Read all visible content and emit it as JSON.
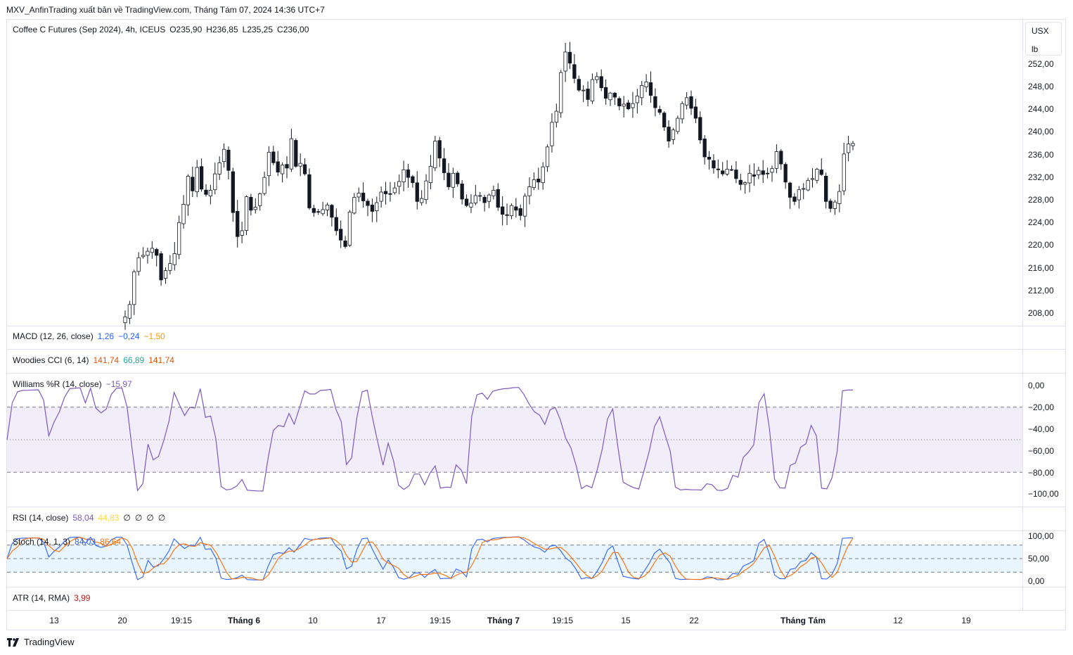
{
  "header": {
    "publish_line": "MXV_AnfinTrading xuất bản về TradingView.com, Tháng Tám 07, 2024 14:36 UTC+7"
  },
  "main_legend": {
    "symbol": "Coffee C Futures (Sep 2024), 4h, ICEUS",
    "open": "O235,90",
    "high": "H236,85",
    "low": "L235,25",
    "close": "C236,00"
  },
  "units": {
    "currency": "USX",
    "unit": "lb"
  },
  "indicators": {
    "macd": {
      "label": "MACD (12, 26, close)",
      "v1": "1,26",
      "v2": "−0,24",
      "v3": "−1,50",
      "c1": "#2962ff",
      "c2": "#2962ff",
      "c3": "#ff9800"
    },
    "cci": {
      "label": "Woodies CCI (6, 14)",
      "v1": "141,74",
      "v2": "66,89",
      "v3": "141,74",
      "c1": "#e65100",
      "c2": "#26a69a",
      "c3": "#e65100"
    },
    "williams": {
      "label": "Williams %R (14, close)",
      "v1": "−15,97",
      "c1": "#7e57c2",
      "axis": [
        "0,00",
        "−20,00",
        "−40,00",
        "−60,00",
        "−80,00",
        "−100,00"
      ]
    },
    "rsi": {
      "label": "RSI (14, close)",
      "v1": "58,04",
      "v2": "44,83",
      "v3": "∅",
      "v4": "∅",
      "v5": "∅",
      "v6": "∅",
      "c1": "#7e57c2",
      "c2": "#fdd835"
    },
    "stoch": {
      "label": "Stoch (14, 1, 3)",
      "v1": "84,03",
      "v2": "86,64",
      "c1": "#2962ff",
      "c2": "#ff6d00",
      "axis": [
        "100,00",
        "50,00",
        "0,00"
      ]
    },
    "atr": {
      "label": "ATR (14, RMA)",
      "v1": "3,99",
      "c1": "#b71c1c"
    }
  },
  "price_axis": [
    "252,00",
    "248,00",
    "244,00",
    "240,00",
    "236,00",
    "232,00",
    "228,00",
    "224,00",
    "220,00",
    "216,00",
    "212,00",
    "208,00"
  ],
  "date_axis": [
    "13",
    "20",
    "19:15",
    "Tháng 6",
    "10",
    "17",
    "19:15",
    "Tháng 7",
    "19:15",
    "15",
    "22",
    "Tháng Tám",
    "12",
    "19"
  ],
  "footer": {
    "brand": "TradingView"
  },
  "chart_data": {
    "type": "candlestick",
    "interval": "4h",
    "x_range": [
      "Tháng 5",
      "19 Tháng Tám"
    ],
    "y_range": [
      205,
      257
    ],
    "close_series": [
      206.4,
      208.5,
      214.1,
      216.5,
      216.9,
      217.6,
      218.1,
      216.9,
      212.7,
      214.3,
      215.5,
      217.2,
      222.5,
      225.6,
      230.4,
      227.9,
      231.9,
      228.2,
      227.3,
      228.0,
      230.8,
      232.7,
      235.0,
      231.4,
      224.2,
      220.1,
      221.1,
      226.9,
      224.6,
      225.1,
      227.4,
      230.2,
      234.5,
      232.7,
      231.1,
      232.3,
      231.8,
      236.8,
      232.1,
      232.6,
      230.8,
      225.0,
      224.2,
      224.3,
      224.7,
      225.5,
      223.4,
      221.1,
      219.5,
      218.4,
      224.3,
      226.8,
      227.5,
      226.2,
      225.4,
      224.4,
      225.9,
      227.7,
      227.4,
      227.4,
      228.4,
      229.5,
      231.5,
      230.2,
      229.3,
      226.1,
      226.6,
      229.6,
      232.1,
      236.4,
      233.5,
      231.0,
      228.6,
      230.9,
      229.1,
      226.5,
      225.4,
      225.8,
      227.1,
      227.1,
      225.9,
      227.2,
      228.0,
      225.1,
      223.9,
      223.7,
      225.4,
      224.6,
      223.7,
      227.0,
      228.6,
      229.8,
      229.4,
      232.0,
      235.4,
      239.6,
      241.5,
      248.1,
      251.6,
      249.7,
      247.1,
      245.1,
      245.1,
      243.5,
      246.9,
      247.4,
      245.5,
      243.7,
      244.6,
      243.9,
      242.4,
      242.7,
      241.9,
      242.8,
      244.1,
      245.9,
      246.5,
      244.2,
      242.1,
      241.3,
      238.8,
      236.4,
      238.3,
      240.3,
      242.8,
      243.8,
      242.0,
      240.3,
      236.6,
      233.7,
      233.3,
      231.8,
      231.5,
      230.8,
      231.6,
      231.5,
      230.0,
      229.0,
      229.3,
      230.9,
      230.4,
      231.4,
      230.7,
      230.9,
      231.7,
      234.6,
      232.5,
      229.4,
      226.8,
      226.1,
      228.1,
      228.3,
      229.7,
      230.0,
      231.6,
      230.7,
      226.1,
      224.9,
      226.0,
      227.8,
      234.2,
      235.9,
      236.0
    ]
  }
}
